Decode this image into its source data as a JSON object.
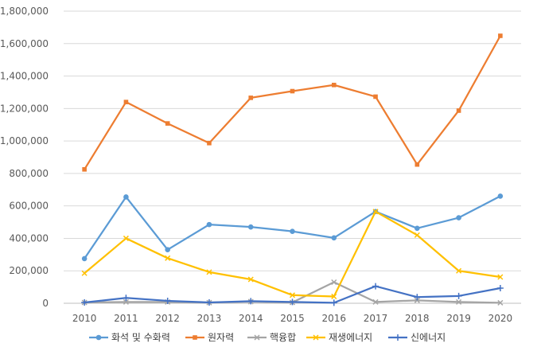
{
  "chart_data": {
    "type": "line",
    "title": "",
    "xlabel": "",
    "ylabel": "",
    "categories": [
      "2010",
      "2011",
      "2012",
      "2013",
      "2014",
      "2015",
      "2016",
      "2017",
      "2018",
      "2019",
      "2020"
    ],
    "ylim": [
      0,
      1800000
    ],
    "yticks": [
      0,
      200000,
      400000,
      600000,
      800000,
      1000000,
      1200000,
      1400000,
      1600000,
      1800000
    ],
    "ytick_labels": [
      "0",
      "200,000",
      "400,000",
      "600,000",
      "800,000",
      "1,000,000",
      "1,200,000",
      "1,400,000",
      "1,600,000",
      "1,800,000"
    ],
    "grid": true,
    "legend_position": "bottom",
    "series": [
      {
        "name": "화석 및 수화력",
        "color": "#5B9BD5",
        "marker": "circle",
        "values": [
          275000,
          655000,
          330000,
          485000,
          470000,
          443000,
          403000,
          565000,
          462000,
          527000,
          660000
        ]
      },
      {
        "name": "원자력",
        "color": "#ED7D31",
        "marker": "square",
        "values": [
          825000,
          1240000,
          1108000,
          987000,
          1266000,
          1307000,
          1345000,
          1273000,
          855000,
          1187000,
          1648000
        ]
      },
      {
        "name": "핵융합",
        "color": "#A5A5A5",
        "marker": "x",
        "values": [
          5000,
          8000,
          8000,
          4000,
          10000,
          5000,
          130000,
          8000,
          18000,
          8000,
          3000
        ]
      },
      {
        "name": "재생에너지",
        "color": "#FFC000",
        "marker": "x",
        "values": [
          185000,
          400000,
          278000,
          192000,
          147000,
          50000,
          42000,
          565000,
          420000,
          200000,
          162000
        ]
      },
      {
        "name": "신에너지",
        "color": "#4472C4",
        "marker": "plus",
        "values": [
          5000,
          33000,
          15000,
          5000,
          13000,
          8000,
          3000,
          105000,
          38000,
          45000,
          93000
        ]
      }
    ]
  }
}
